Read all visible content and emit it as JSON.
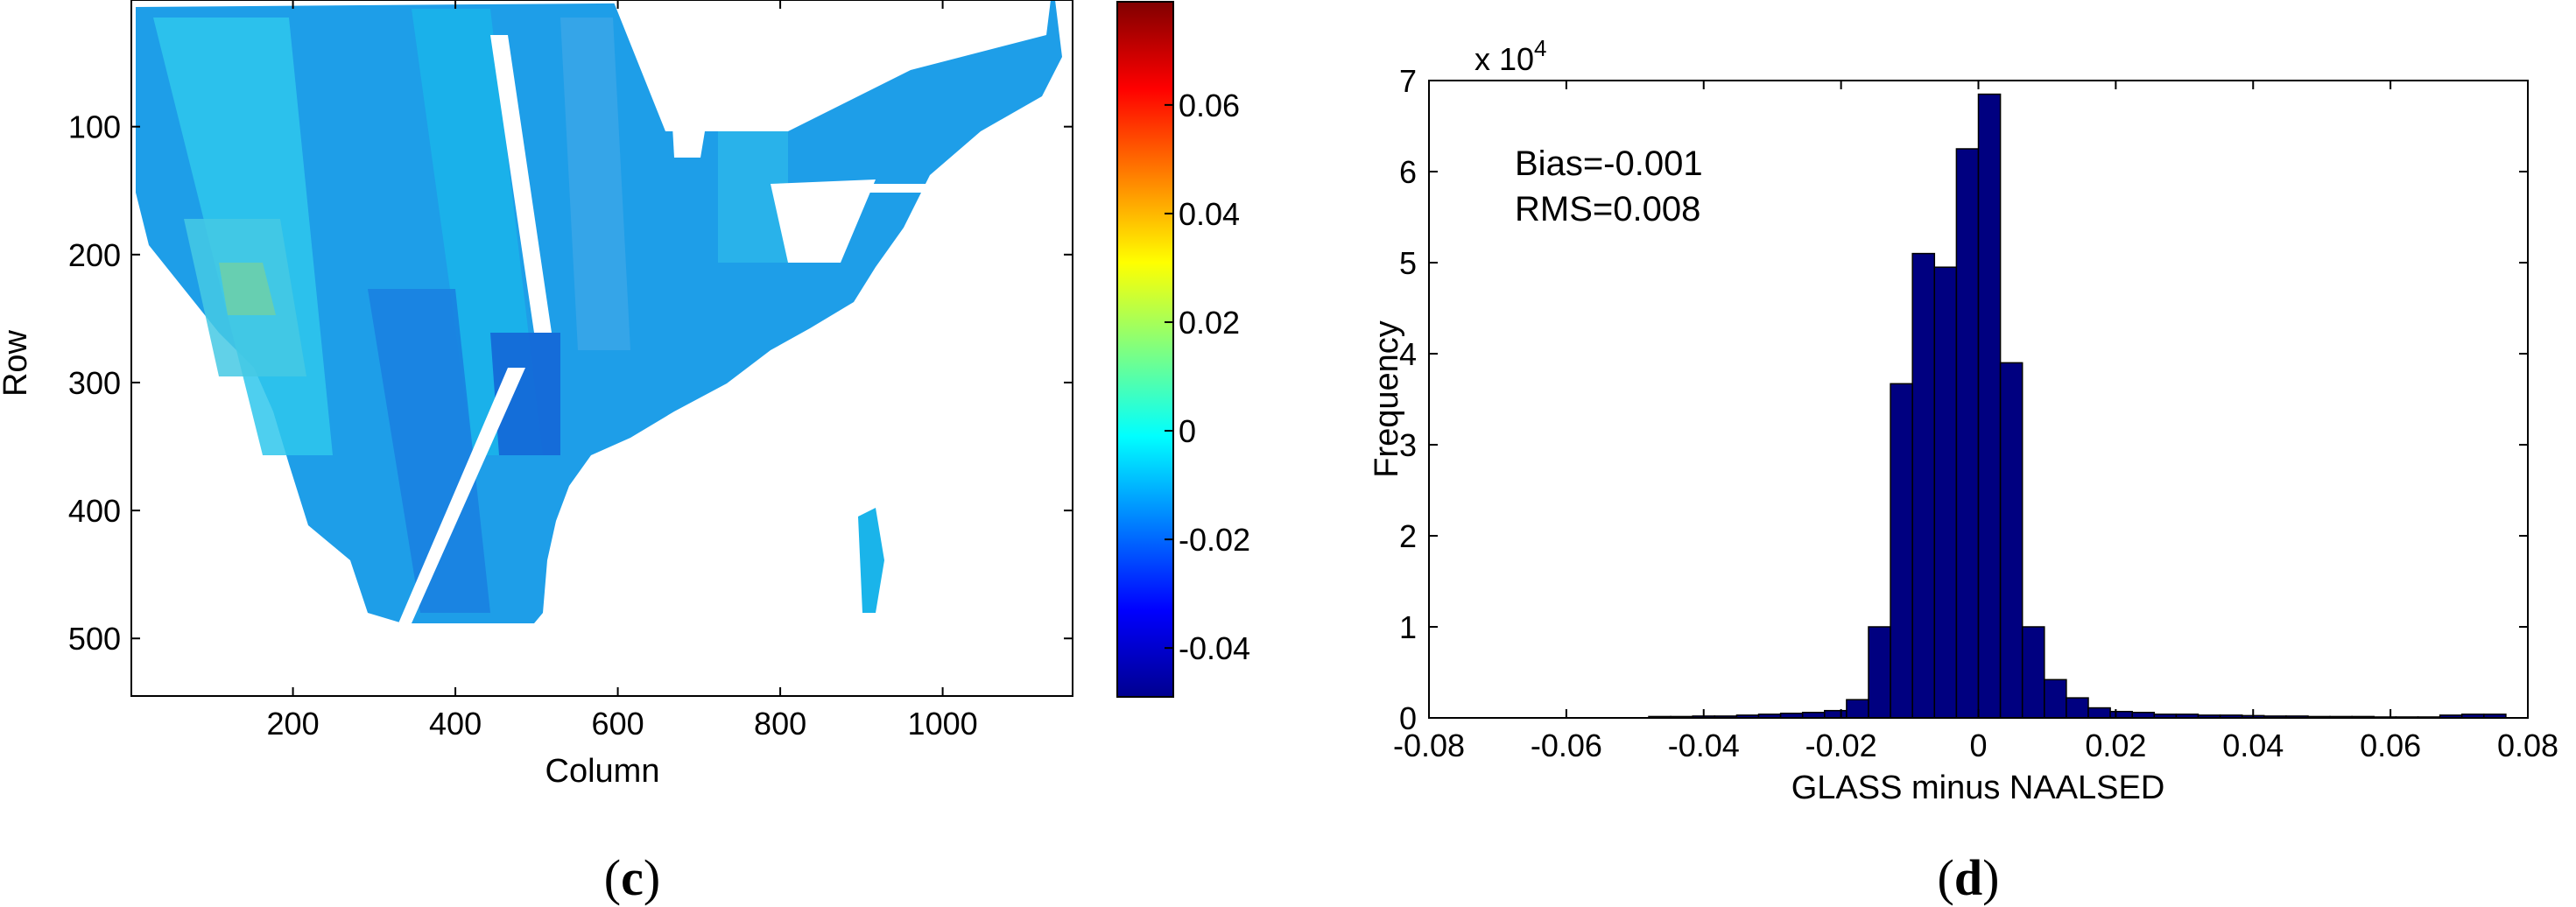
{
  "panels": [
    "(c)",
    "(d)"
  ],
  "chart_data": [
    {
      "type": "heatmap",
      "panel_label": "c",
      "xlabel": "Column",
      "ylabel": "Row",
      "xticks": [
        200,
        400,
        600,
        800,
        1000
      ],
      "yticks": [
        100,
        200,
        300,
        400,
        500
      ],
      "xlim": [
        1,
        1160
      ],
      "ylim": [
        1,
        545
      ],
      "y_reversed": true,
      "colormap": "jet",
      "colorbar": {
        "range": [
          -0.049,
          0.079
        ],
        "ticks": [
          -0.04,
          -0.02,
          0,
          0.02,
          0.04,
          0.06
        ],
        "tick_labels": [
          "-0.04",
          "-0.02",
          "0",
          "0.02",
          "0.04",
          "0.06"
        ]
      },
      "colors": [
        "#00008f",
        "#0000ff",
        "#00ffff",
        "#ffff00",
        "#ff0000",
        "#800000"
      ],
      "grid": false
    },
    {
      "type": "bar",
      "subtype": "histogram",
      "panel_label": "d",
      "xlabel": "GLASS minus NAALSED",
      "ylabel": "Frequency",
      "y_scale_label": "x 10^4",
      "y_multiplier": 10000,
      "xlim": [
        -0.08,
        0.08
      ],
      "ylim": [
        0,
        70000
      ],
      "xticks": [
        -0.08,
        -0.06,
        -0.04,
        -0.02,
        0,
        0.02,
        0.04,
        0.06,
        0.08
      ],
      "xtick_labels": [
        "-0.08",
        "-0.06",
        "-0.04",
        "-0.02",
        "0",
        "0.02",
        "0.04",
        "0.06",
        "0.08"
      ],
      "yticks": [
        0,
        1,
        2,
        3,
        4,
        5,
        6,
        7
      ],
      "ytick_labels": [
        "0",
        "1",
        "2",
        "3",
        "4",
        "5",
        "6",
        "7"
      ],
      "bin_width": 0.0032,
      "bin_centers": [
        -0.0464,
        -0.0432,
        -0.04,
        -0.0368,
        -0.0336,
        -0.0304,
        -0.0272,
        -0.024,
        -0.0208,
        -0.0176,
        -0.0144,
        -0.0112,
        -0.008,
        -0.0048,
        -0.0016,
        0.0016,
        0.0048,
        0.008,
        0.0112,
        0.0144,
        0.0176,
        0.0208,
        0.024,
        0.0272,
        0.0304,
        0.0336,
        0.0368,
        0.04,
        0.0432,
        0.0464,
        0.0496,
        0.0528,
        0.056,
        0.0592,
        0.0624,
        0.0656,
        0.0688,
        0.072,
        0.0752
      ],
      "values": [
        150,
        150,
        200,
        200,
        300,
        400,
        500,
        600,
        800,
        2000,
        10000,
        36700,
        51000,
        49500,
        62500,
        68500,
        39000,
        10000,
        4200,
        2200,
        1100,
        700,
        600,
        400,
        400,
        300,
        300,
        250,
        200,
        200,
        150,
        150,
        150,
        100,
        100,
        100,
        300,
        400,
        400
      ],
      "bar_color": "#000080",
      "annotations": [
        "Bias=-0.001",
        "RMS=0.008"
      ],
      "grid": false
    }
  ]
}
